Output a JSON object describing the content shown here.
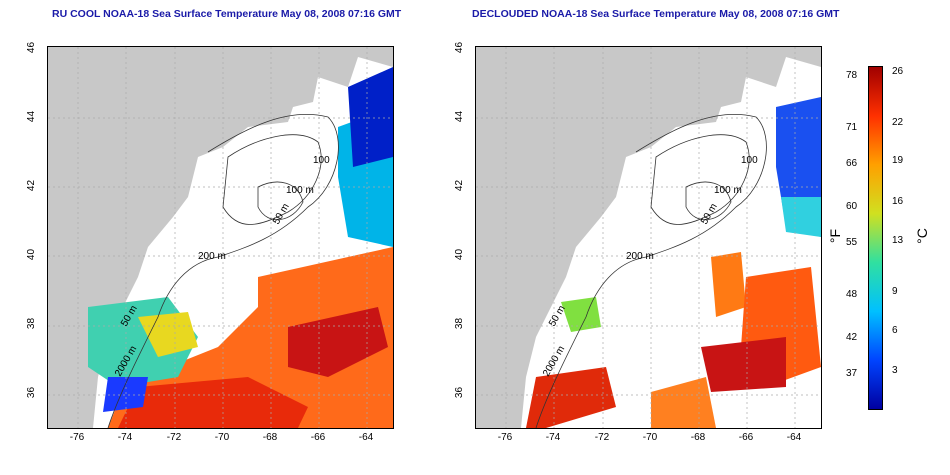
{
  "left_map": {
    "title": "RU COOL NOAA-18 Sea Surface Temperature May 08, 2008 07:16 GMT",
    "x_ticks": [
      "-76",
      "-74",
      "-72",
      "-70",
      "-68",
      "-66",
      "-64"
    ],
    "y_ticks": [
      "46",
      "44",
      "42",
      "40",
      "38",
      "36"
    ],
    "contour_labels": [
      "100",
      "100 m",
      "50 m",
      "200 m",
      "50 m",
      "2000 m"
    ]
  },
  "right_map": {
    "title": "DECLOUDED NOAA-18 Sea Surface Temperature May 08, 2008 07:16 GMT",
    "x_ticks": [
      "-76",
      "-74",
      "-72",
      "-70",
      "-68",
      "-66",
      "-64"
    ],
    "y_ticks": [
      "46",
      "44",
      "42",
      "40",
      "38",
      "36"
    ],
    "contour_labels": [
      "100",
      "100 m",
      "50 m",
      "200 m",
      "50 m",
      "2000 m"
    ]
  },
  "colorbar": {
    "f_unit": "°F",
    "c_unit": "°C",
    "f_ticks": [
      "78",
      "71",
      "66",
      "60",
      "55",
      "48",
      "42",
      "37"
    ],
    "c_ticks": [
      "26",
      "22",
      "19",
      "16",
      "13",
      "9",
      "6",
      "3"
    ],
    "colors": [
      "#0000a0",
      "#0044ff",
      "#00c0ff",
      "#30e0a0",
      "#d0e020",
      "#ffa000",
      "#ff3000",
      "#a00000"
    ]
  },
  "colors": {
    "land": "#c8c8c8",
    "cloud": "#ffffff",
    "grid": "#aaaaaa",
    "title": "#1a1aa8"
  }
}
